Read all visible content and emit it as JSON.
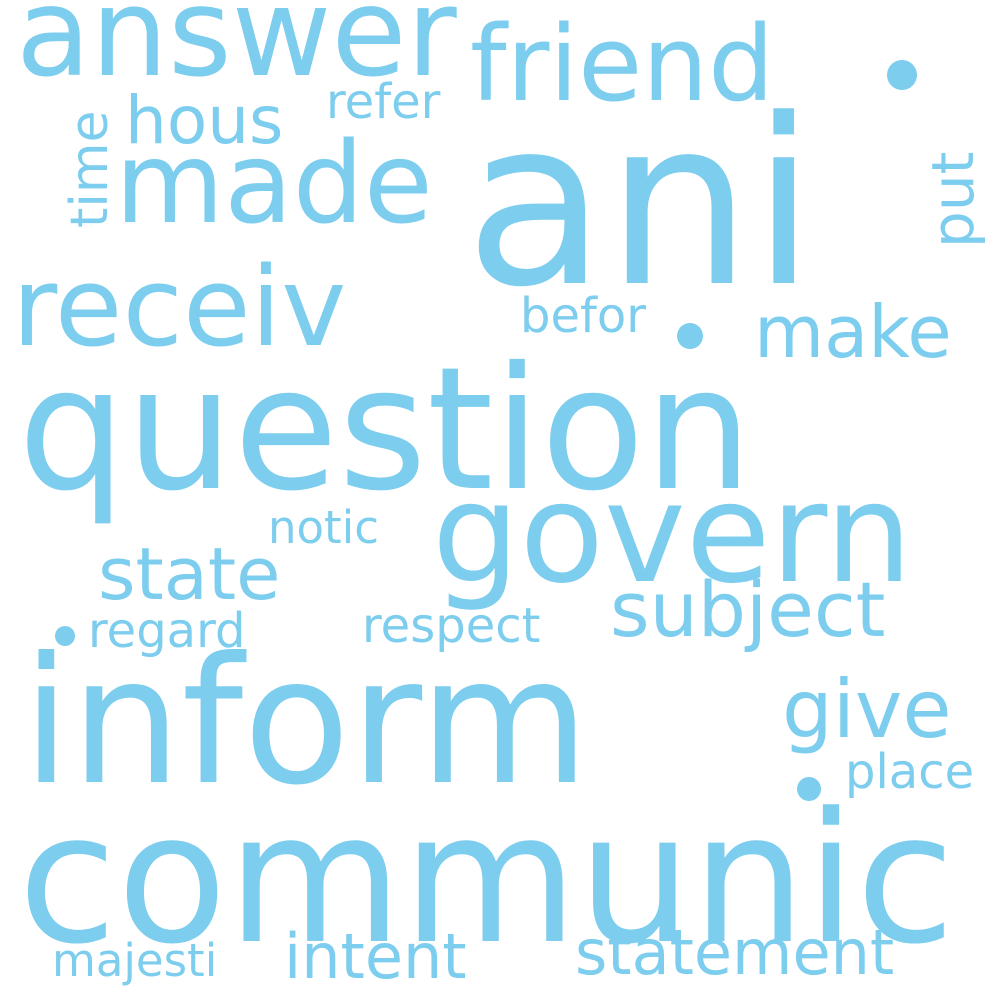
{
  "color": "#7ccdee",
  "background": "#ffffff",
  "words": [
    {
      "key": "ani",
      "text": "ani"
    },
    {
      "key": "question",
      "text": "question"
    },
    {
      "key": "inform",
      "text": "inform"
    },
    {
      "key": "communic",
      "text": "communic"
    },
    {
      "key": "govern",
      "text": "govern"
    },
    {
      "key": "answer",
      "text": "answer"
    },
    {
      "key": "friend",
      "text": "friend"
    },
    {
      "key": "made",
      "text": "made"
    },
    {
      "key": "receiv",
      "text": "receiv"
    },
    {
      "key": "hous",
      "text": "hous"
    },
    {
      "key": "refer",
      "text": "refer"
    },
    {
      "key": "time",
      "text": "time"
    },
    {
      "key": "put",
      "text": "put"
    },
    {
      "key": "make",
      "text": "make"
    },
    {
      "key": "befor",
      "text": "befor"
    },
    {
      "key": "notic",
      "text": "notic"
    },
    {
      "key": "state",
      "text": "state"
    },
    {
      "key": "subject",
      "text": "subject"
    },
    {
      "key": "regard",
      "text": "regard"
    },
    {
      "key": "respect",
      "text": "respect"
    },
    {
      "key": "give",
      "text": "give"
    },
    {
      "key": "place",
      "text": "place"
    },
    {
      "key": "majesti",
      "text": "majesti"
    },
    {
      "key": "intent",
      "text": "intent"
    },
    {
      "key": "statement",
      "text": "statement"
    }
  ]
}
